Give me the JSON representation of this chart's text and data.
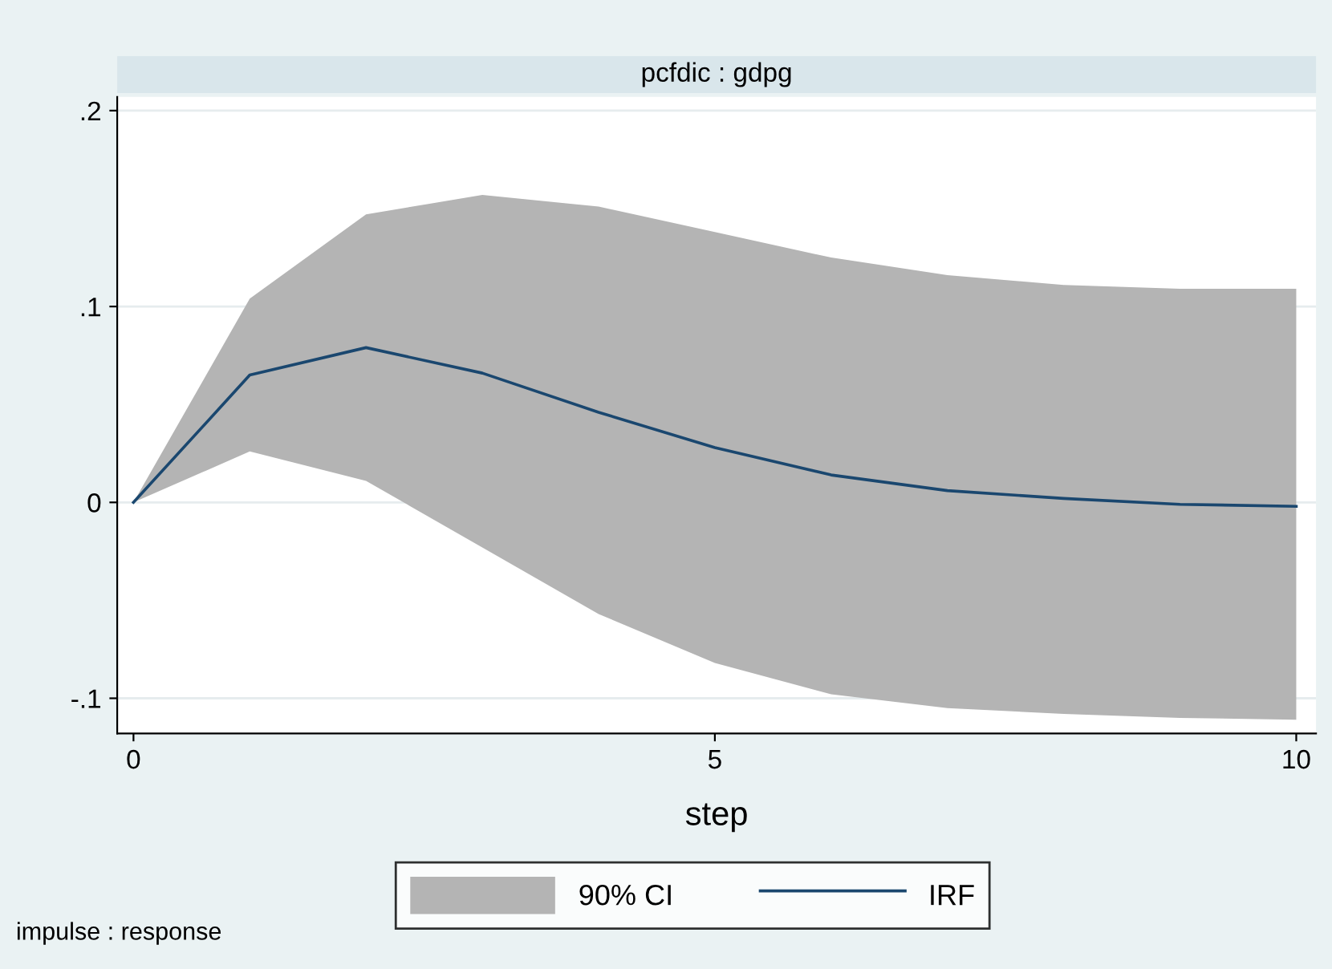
{
  "chart_data": {
    "type": "line",
    "title": "pcfdic : gdpg",
    "xlabel": "step",
    "annotations": [
      "impulse : response",
      "90% CI"
    ],
    "x": [
      0,
      1,
      2,
      3,
      4,
      5,
      6,
      7,
      8,
      9,
      10
    ],
    "series": [
      {
        "name": "IRF",
        "color": "#1a476f",
        "values": [
          0,
          0.065,
          0.079,
          0.066,
          0.046,
          0.028,
          0.014,
          0.006,
          0.002,
          -0.001,
          -0.002
        ],
        "lower": [
          0,
          0.026,
          0.011,
          -0.023,
          -0.057,
          -0.082,
          -0.098,
          -0.105,
          -0.108,
          -0.11,
          -0.111
        ],
        "upper": [
          0,
          0.104,
          0.147,
          0.157,
          0.151,
          0.138,
          0.125,
          0.116,
          0.111,
          0.109,
          0.109
        ]
      }
    ],
    "xlim": [
      -0.14,
      10.17
    ],
    "ylim": [
      -0.118,
      0.207
    ],
    "xticks": [
      0,
      5,
      10
    ],
    "yticks": [
      {
        "value": -0.1,
        "label": "-.1"
      },
      0,
      {
        "value": 0.1,
        "label": ".1"
      },
      {
        "value": 0.2,
        "label": ".2"
      }
    ],
    "grid": "y",
    "legend": "bottom",
    "marker": "none",
    "line_style": "solid"
  }
}
